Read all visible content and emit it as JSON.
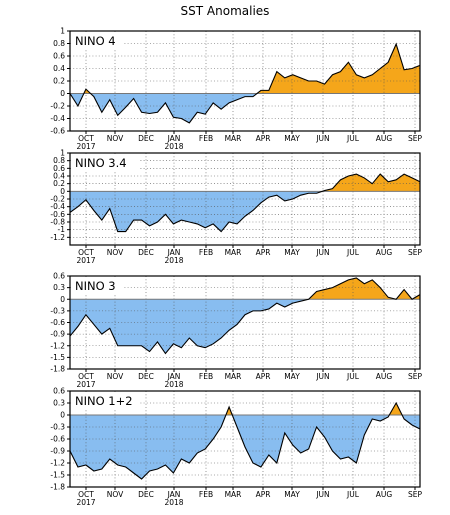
{
  "title": "SST Anomalies",
  "colors": {
    "positive": "#f5a61a",
    "negative": "#88bdf0",
    "line": "#000000",
    "zero": "#777777"
  },
  "x_tick_labels": [
    "OCT",
    "NOV",
    "DEC",
    "JAN",
    "FEB",
    "MAR",
    "APR",
    "MAY",
    "JUN",
    "JUL",
    "AUG",
    "SEP"
  ],
  "year_labels": [
    "2017",
    "2018"
  ],
  "chart_data": [
    {
      "type": "area",
      "panel": "NINO 4",
      "label": "NINO 4",
      "ylim": [
        -0.6,
        1.0
      ],
      "yticks": [
        -0.6,
        -0.4,
        -0.2,
        0,
        0.2,
        0.4,
        0.6,
        0.8,
        1
      ],
      "ytick_labels": [
        "-0.6",
        "-0.4",
        "-0.2",
        "0",
        "0.2",
        "0.4",
        "0.6",
        "0.8",
        "1"
      ],
      "values": [
        0,
        -0.2,
        0.07,
        -0.05,
        -0.3,
        -0.1,
        -0.35,
        -0.22,
        -0.08,
        -0.3,
        -0.32,
        -0.3,
        -0.15,
        -0.38,
        -0.4,
        -0.47,
        -0.3,
        -0.33,
        -0.15,
        -0.25,
        -0.15,
        -0.1,
        -0.05,
        -0.05,
        0.05,
        0.05,
        0.35,
        0.25,
        0.3,
        0.25,
        0.2,
        0.2,
        0.15,
        0.3,
        0.35,
        0.5,
        0.3,
        0.25,
        0.3,
        0.4,
        0.5,
        0.79,
        0.38,
        0.4,
        0.45
      ]
    },
    {
      "type": "area",
      "panel": "NINO 3.4",
      "label": "NINO 3.4",
      "ylim": [
        -1.4,
        1.0
      ],
      "yticks": [
        -1.2,
        -1,
        -0.8,
        -0.6,
        -0.4,
        -0.2,
        0,
        0.2,
        0.4,
        0.6,
        0.8,
        1
      ],
      "ytick_labels": [
        "-1.2",
        "-1",
        "-0.8",
        "-0.6",
        "-0.4",
        "-0.2",
        "0",
        "0.2",
        "0.4",
        "0.6",
        "0.8",
        "1"
      ],
      "values": [
        -0.55,
        -0.4,
        -0.22,
        -0.5,
        -0.75,
        -0.45,
        -1.05,
        -1.05,
        -0.75,
        -0.75,
        -0.9,
        -0.8,
        -0.6,
        -0.85,
        -0.75,
        -0.8,
        -0.85,
        -0.95,
        -0.85,
        -1.05,
        -0.8,
        -0.85,
        -0.65,
        -0.5,
        -0.3,
        -0.15,
        -0.1,
        -0.25,
        -0.2,
        -0.1,
        -0.05,
        -0.05,
        0.02,
        0.07,
        0.3,
        0.4,
        0.45,
        0.35,
        0.2,
        0.45,
        0.25,
        0.3,
        0.45,
        0.35,
        0.25
      ]
    },
    {
      "type": "area",
      "panel": "NINO 3",
      "label": "NINO 3",
      "ylim": [
        -1.8,
        0.6
      ],
      "yticks": [
        -1.8,
        -1.5,
        -1.2,
        -0.9,
        -0.6,
        -0.3,
        0,
        0.3,
        0.6
      ],
      "ytick_labels": [
        "-1.8",
        "-1.5",
        "-1.2",
        "-0.9",
        "-0.6",
        "-0.3",
        "0",
        "0.3",
        "0.6"
      ],
      "values": [
        -0.95,
        -0.7,
        -0.4,
        -0.65,
        -0.9,
        -0.75,
        -1.2,
        -1.2,
        -1.2,
        -1.2,
        -1.35,
        -1.1,
        -1.4,
        -1.15,
        -1.25,
        -1.0,
        -1.2,
        -1.25,
        -1.15,
        -1.0,
        -0.8,
        -0.65,
        -0.4,
        -0.3,
        -0.3,
        -0.25,
        -0.1,
        -0.2,
        -0.1,
        -0.05,
        0.0,
        0.2,
        0.25,
        0.3,
        0.4,
        0.5,
        0.55,
        0.4,
        0.5,
        0.3,
        0.05,
        0.0,
        0.25,
        0.0,
        0.12
      ]
    },
    {
      "type": "area",
      "panel": "NINO 1+2",
      "label": "NINO 1+2",
      "ylim": [
        -1.8,
        0.6
      ],
      "yticks": [
        -1.8,
        -1.5,
        -1.2,
        -0.9,
        -0.6,
        -0.3,
        0,
        0.3,
        0.6
      ],
      "ytick_labels": [
        "-1.8",
        "-1.5",
        "-1.2",
        "-0.9",
        "-0.6",
        "-0.3",
        "0",
        "0.3",
        "0.6"
      ],
      "values": [
        -0.9,
        -1.3,
        -1.25,
        -1.4,
        -1.35,
        -1.1,
        -1.25,
        -1.3,
        -1.45,
        -1.6,
        -1.4,
        -1.35,
        -1.25,
        -1.45,
        -1.1,
        -1.2,
        -0.95,
        -0.85,
        -0.6,
        -0.3,
        0.2,
        -0.3,
        -0.8,
        -1.2,
        -1.3,
        -1.0,
        -1.2,
        -0.45,
        -0.75,
        -0.95,
        -0.85,
        -0.3,
        -0.55,
        -0.9,
        -1.1,
        -1.05,
        -1.2,
        -0.5,
        -0.1,
        -0.15,
        -0.05,
        0.3,
        -0.1,
        -0.25,
        -0.35
      ]
    }
  ]
}
